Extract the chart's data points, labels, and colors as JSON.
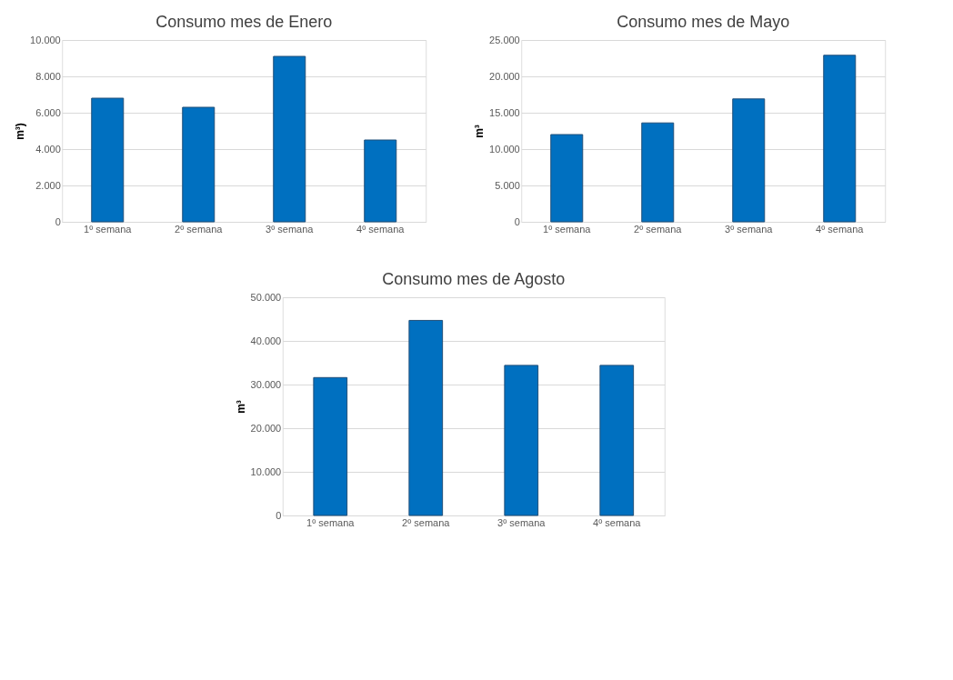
{
  "chart_data": [
    {
      "type": "bar",
      "title": "Consumo mes de Enero",
      "ylabel": "m³)",
      "categories": [
        "1º semana",
        "2º semana",
        "3º semana",
        "4º semana"
      ],
      "values": [
        6800,
        6300,
        9100,
        4500
      ],
      "color": "#0070c0",
      "ylim": [
        0,
        10000
      ],
      "yticks": [
        0,
        {
          "value": 2000,
          "label": "2.000"
        },
        {
          "value": 4000,
          "label": "4.000"
        },
        {
          "value": 6000,
          "label": "6.000"
        },
        {
          "value": 8000,
          "label": "8.000"
        },
        {
          "value": 10000,
          "label": "10.000"
        }
      ],
      "grid": "y"
    },
    {
      "type": "bar",
      "title": "Consumo mes de Mayo",
      "ylabel": "m³",
      "categories": [
        "1º semana",
        "2º semana",
        "3º semana",
        "4º semana"
      ],
      "values": [
        12000,
        13600,
        16900,
        22900
      ],
      "color": "#0070c0",
      "ylim": [
        0,
        25000
      ],
      "yticks": [
        0,
        {
          "value": 5000,
          "label": "5.000"
        },
        {
          "value": 10000,
          "label": "10.000"
        },
        {
          "value": 15000,
          "label": "15.000"
        },
        {
          "value": 20000,
          "label": "20.000"
        },
        {
          "value": 25000,
          "label": "25.000"
        }
      ],
      "grid": "y"
    },
    {
      "type": "bar",
      "title": "Consumo mes de Agosto",
      "ylabel": "m³",
      "categories": [
        "1º semana",
        "2º semana",
        "3º semana",
        "4º semana"
      ],
      "values": [
        31600,
        44700,
        34400,
        34400
      ],
      "color": "#0070c0",
      "ylim": [
        0,
        50000
      ],
      "yticks": [
        0,
        {
          "value": 10000,
          "label": "10.000"
        },
        {
          "value": 20000,
          "label": "20.000"
        },
        {
          "value": 30000,
          "label": "30.000"
        },
        {
          "value": 40000,
          "label": "40.000"
        },
        {
          "value": 50000,
          "label": "50.000"
        }
      ],
      "grid": "y"
    }
  ]
}
